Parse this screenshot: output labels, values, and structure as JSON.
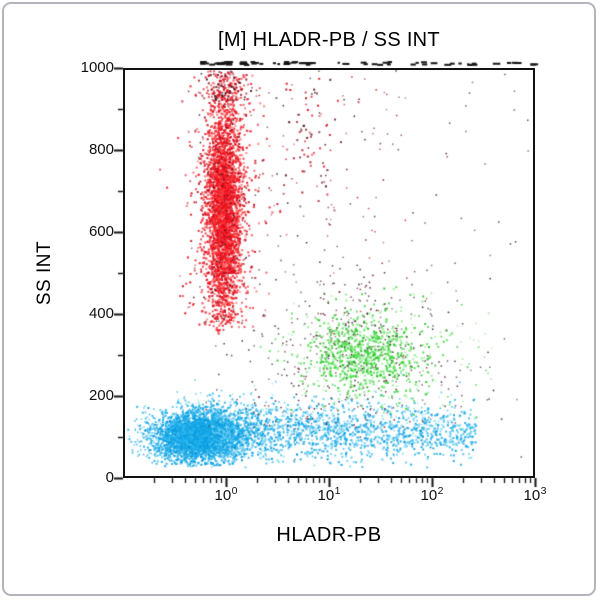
{
  "card": {
    "background": "#ffffff",
    "border_color": "#b4b4bc"
  },
  "chart_data": {
    "type": "scatter",
    "subtype": "flow-cytometry-dot-plot",
    "title": "[M] HLADR-PB / SS INT",
    "xlabel": "HLADR-PB",
    "ylabel": "SS INT",
    "x_scale": "log10",
    "x_range": [
      0.1,
      1000
    ],
    "x_range_log10": [
      -1,
      3
    ],
    "x_major_ticks": [
      {
        "value": 1,
        "base": "10",
        "exp": "0",
        "log10": 0
      },
      {
        "value": 10,
        "base": "10",
        "exp": "1",
        "log10": 1
      },
      {
        "value": 100,
        "base": "10",
        "exp": "2",
        "log10": 2
      },
      {
        "value": 1000,
        "base": "10",
        "exp": "3",
        "log10": 3
      }
    ],
    "x_minor_tick_multipliers": [
      2,
      3,
      4,
      5,
      6,
      7,
      8,
      9
    ],
    "y_scale": "linear",
    "y_range": [
      0,
      1000
    ],
    "y_major_ticks": [
      0,
      200,
      400,
      600,
      800,
      1000
    ],
    "y_minor_tick_step": 100,
    "grid": false,
    "legend": false,
    "frame_color": "#111111",
    "tick_color": "#111111",
    "populations": [
      {
        "id": "cyan_core",
        "label": "low-SS dense population (cyan), HLADR ~0.5, SS ~100",
        "n": 3000,
        "x": {
          "dist": "normal_log10",
          "mean": -0.27,
          "sd": 0.21
        },
        "y": {
          "dist": "normal",
          "mean": 103,
          "sd": 30,
          "min": 30,
          "max": 205
        },
        "size": 2,
        "palette": [
          "#0fa5e8",
          "#18ace9",
          "#31b7ee",
          "#0797da"
        ]
      },
      {
        "id": "cyan_band",
        "label": "low-SS band extending to HLADR ~250",
        "n": 1750,
        "x": {
          "dist": "uniform_log10",
          "min": -0.15,
          "max": 2.42,
          "bias": 1.5
        },
        "y": {
          "dist": "normal",
          "mean": 116,
          "sd": 34,
          "min": 28,
          "max": 215
        },
        "size": 2,
        "palette": [
          "#14a8e8",
          "#3cbcee",
          "#0b9bdd",
          "#72d2f4"
        ]
      },
      {
        "id": "cyan_left_tail",
        "n": 200,
        "x": {
          "dist": "uniform_log10",
          "min": -0.95,
          "max": -0.35,
          "bias": 0.8
        },
        "y": {
          "dist": "normal",
          "mean": 100,
          "sd": 32,
          "min": 35,
          "max": 190
        },
        "size": 1.5,
        "palette": [
          "#14a8e8",
          "#49c2f0"
        ]
      },
      {
        "id": "cyan_top_sparse",
        "n": 140,
        "x": {
          "dist": "uniform_log10",
          "min": -0.5,
          "max": 2.3,
          "bias": 1.3
        },
        "y": {
          "dist": "normal",
          "mean": 170,
          "sd": 30,
          "min": 120,
          "max": 260
        },
        "size": 1.5,
        "palette": [
          "#2fb6ec",
          "#8edcf6"
        ]
      },
      {
        "id": "green_halo",
        "n": 260,
        "x": {
          "dist": "normal_log10",
          "mean": 1.38,
          "sd": 0.43
        },
        "y": {
          "dist": "normal",
          "mean": 302,
          "sd": 78,
          "min": 150,
          "max": 470
        },
        "size": 2,
        "palette": [
          "#2bd12b",
          "#56d856",
          "#9aec9a"
        ]
      },
      {
        "id": "green_core",
        "label": "mid-SS population (green), HLADR ~20, SS ~300",
        "n": 620,
        "x": {
          "dist": "normal_log10",
          "mean": 1.33,
          "sd": 0.25
        },
        "y": {
          "dist": "normal",
          "mean": 303,
          "sd": 42,
          "min": 185,
          "max": 425
        },
        "size": 2,
        "palette": [
          "#2bd12b",
          "#1fbf1f",
          "#49e049",
          "#83e983"
        ]
      },
      {
        "id": "green_sparse",
        "n": 90,
        "x": {
          "dist": "uniform_log10",
          "min": 0.5,
          "max": 2.62,
          "bias": 1
        },
        "y": {
          "dist": "normal",
          "mean": 300,
          "sd": 70,
          "min": 160,
          "max": 450
        },
        "size": 1.5,
        "palette": [
          "#3cd43c",
          "#8fe98f"
        ]
      },
      {
        "id": "red_halo",
        "n": 650,
        "x": {
          "dist": "normal_log10",
          "mean": -0.02,
          "sd": 0.17
        },
        "y": {
          "dist": "normal",
          "mean": 670,
          "sd": 205,
          "min": 350,
          "max": 1000
        },
        "size": 2,
        "palette": [
          "#ee1122",
          "#c81020",
          "#ff5050"
        ]
      },
      {
        "id": "red_core",
        "label": "high-SS population (red), HLADR ~0.9, SS ~400-1000",
        "n": 3000,
        "x": {
          "dist": "normal_log10",
          "mean": -0.03,
          "sd": 0.085
        },
        "y": {
          "dist": "normal",
          "mean": 655,
          "sd": 135,
          "min": 360,
          "max": 1000
        },
        "size": 2,
        "palette": [
          "#f01423",
          "#e50f1e",
          "#ff2a2a",
          "#d40a1a",
          "#ff4444"
        ]
      },
      {
        "id": "red_top_fuzz",
        "n": 140,
        "x": {
          "dist": "normal_log10",
          "mean": -0.02,
          "sd": 0.1
        },
        "y": {
          "dist": "uniform",
          "min": 920,
          "max": 1000
        },
        "size": 2,
        "palette": [
          "#e01020",
          "#a01020",
          "#401016"
        ]
      },
      {
        "id": "red_right_sparse",
        "label": "sparse red column at HLADR ~7, high SS",
        "n": 75,
        "x": {
          "dist": "normal_log10",
          "mean": 0.82,
          "sd": 0.16
        },
        "y": {
          "dist": "normal",
          "mean": 850,
          "sd": 120,
          "min": 560,
          "max": 1000
        },
        "size": 2,
        "palette": [
          "#e01323",
          "#b01325",
          "#5a1018"
        ]
      },
      {
        "id": "red_scatter",
        "n": 110,
        "x": {
          "dist": "uniform_log10",
          "min": -0.4,
          "max": 1.75,
          "bias": 1
        },
        "y": {
          "dist": "uniform",
          "min": 380,
          "max": 1000
        },
        "size": 1.5,
        "palette": [
          "#e01323",
          "#8a1020",
          "#c2506a"
        ]
      },
      {
        "id": "dark_mid",
        "label": "dark debris/doublet specks around green population",
        "n": 390,
        "x": {
          "dist": "normal_log10",
          "mean": 1.2,
          "sd": 0.55
        },
        "y": {
          "dist": "normal",
          "mean": 305,
          "sd": 135,
          "min": 120,
          "max": 540
        },
        "size": 1.5,
        "palette": [
          "#55202e",
          "#3a2430",
          "#6b2434",
          "#2f2f3f",
          "#804050"
        ]
      },
      {
        "id": "dark_wide",
        "n": 140,
        "x": {
          "dist": "uniform_log10",
          "min": -0.35,
          "max": 2.95,
          "bias": 1
        },
        "y": {
          "dist": "uniform",
          "min": 40,
          "max": 995
        },
        "size": 1.5,
        "palette": [
          "#43202c",
          "#32222c",
          "#6b2434"
        ]
      },
      {
        "id": "dark_in_red",
        "n": 90,
        "x": {
          "dist": "normal_log10",
          "mean": -0.03,
          "sd": 0.1
        },
        "y": {
          "dist": "normal",
          "mean": 650,
          "sd": 175,
          "min": 380,
          "max": 1000
        },
        "size": 1.5,
        "palette": [
          "#551016",
          "#30080c",
          "#7a1a20"
        ]
      }
    ],
    "offscale_top_dashes": {
      "description": "events off-scale high (SS INT > 1000) drawn as black dashes above plot frame",
      "color": "#141414",
      "n_uniform": 52,
      "x_min": -0.35,
      "x_max": 2.97,
      "n_cluster": 16,
      "cluster_mean": 0.0,
      "cluster_sd": 0.12
    }
  }
}
